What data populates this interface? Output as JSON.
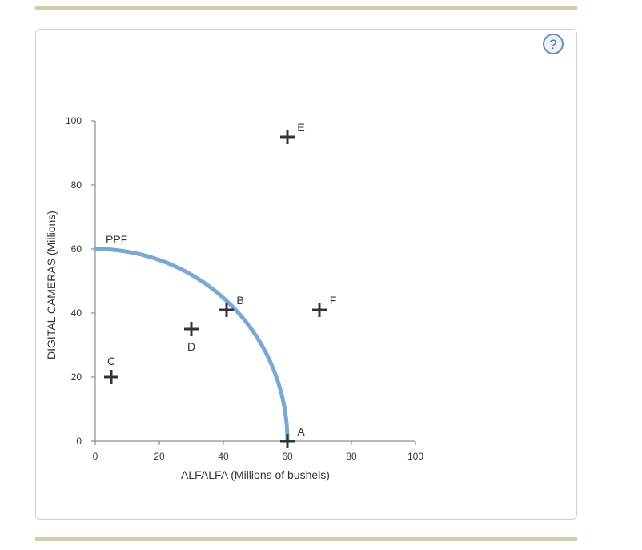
{
  "chart_data": {
    "type": "scatter",
    "xlabel": "ALFALFA (Millions of bushels)",
    "ylabel": "DIGITAL CAMERAS (Millions)",
    "xlim": [
      0,
      100
    ],
    "ylim": [
      0,
      100
    ],
    "x_ticks": [
      0,
      20,
      40,
      60,
      80,
      100
    ],
    "y_ticks": [
      0,
      20,
      40,
      60,
      80,
      100
    ],
    "grid": false,
    "curve": {
      "label": "PPF",
      "color": "#7ba7d4",
      "shape": "quarter-ellipse",
      "x_intercept": 60,
      "y_intercept": 60
    },
    "points": [
      {
        "label": "A",
        "x": 60,
        "y": 0
      },
      {
        "label": "B",
        "x": 41,
        "y": 41
      },
      {
        "label": "C",
        "x": 5,
        "y": 20
      },
      {
        "label": "D",
        "x": 30,
        "y": 35
      },
      {
        "label": "E",
        "x": 60,
        "y": 95
      },
      {
        "label": "F",
        "x": 70,
        "y": 41
      }
    ],
    "marker": "plus",
    "marker_color": "#333333"
  },
  "help_icon": "question-mark-icon"
}
